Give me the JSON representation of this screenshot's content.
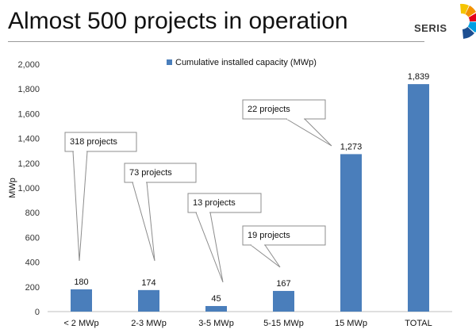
{
  "page": {
    "title": "Almost 500 projects in operation",
    "logo_text": "SERIS"
  },
  "chart_data": {
    "type": "bar",
    "categories": [
      "< 2 MWp",
      "2-3 MWp",
      "3-5 MWp",
      "5-15 MWp",
      "15 MWp",
      "TOTAL"
    ],
    "series": [
      {
        "name": "Cumulative installed capacity (MWp)",
        "values": [
          180,
          174,
          45,
          167,
          1273,
          1839
        ]
      }
    ],
    "data_labels": [
      "180",
      "174",
      "45",
      "167",
      "1,273",
      "1,839"
    ],
    "ylabel": "MWp",
    "ylim": [
      0,
      2000
    ],
    "yticks": [
      "0",
      "200",
      "400",
      "600",
      "800",
      "1,000",
      "1,200",
      "1,400",
      "1,600",
      "1,800",
      "2,000"
    ],
    "legend_position": "top-center",
    "bar_color": "#4a7ebb",
    "annotations": [
      "318 projects",
      "73 projects",
      "13 projects",
      "19 projects",
      "22 projects",
      ""
    ]
  }
}
